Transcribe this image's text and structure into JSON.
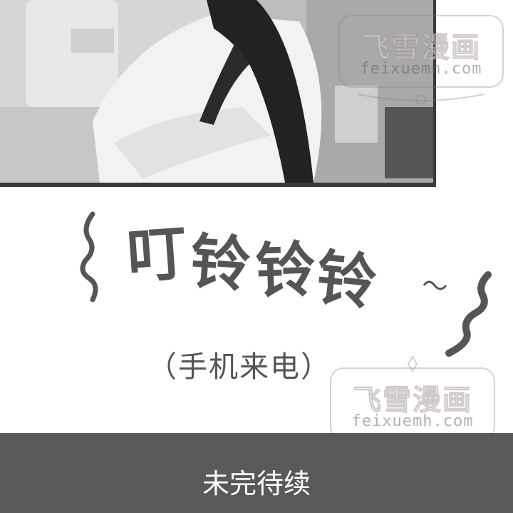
{
  "panel": {
    "sound_effect": [
      "叮",
      "铃",
      "铃",
      "铃"
    ],
    "caption": "（手机来电）"
  },
  "footer": {
    "text": "未完待续"
  },
  "watermarks": [
    {
      "title": "飞雪漫画",
      "url": "feixuemh.com"
    },
    {
      "title": "飞雪漫画",
      "url": "feixuemh.com"
    }
  ],
  "colors": {
    "ink": "#555555",
    "footer_bg": "#595959",
    "footer_text": "#ffffff"
  }
}
